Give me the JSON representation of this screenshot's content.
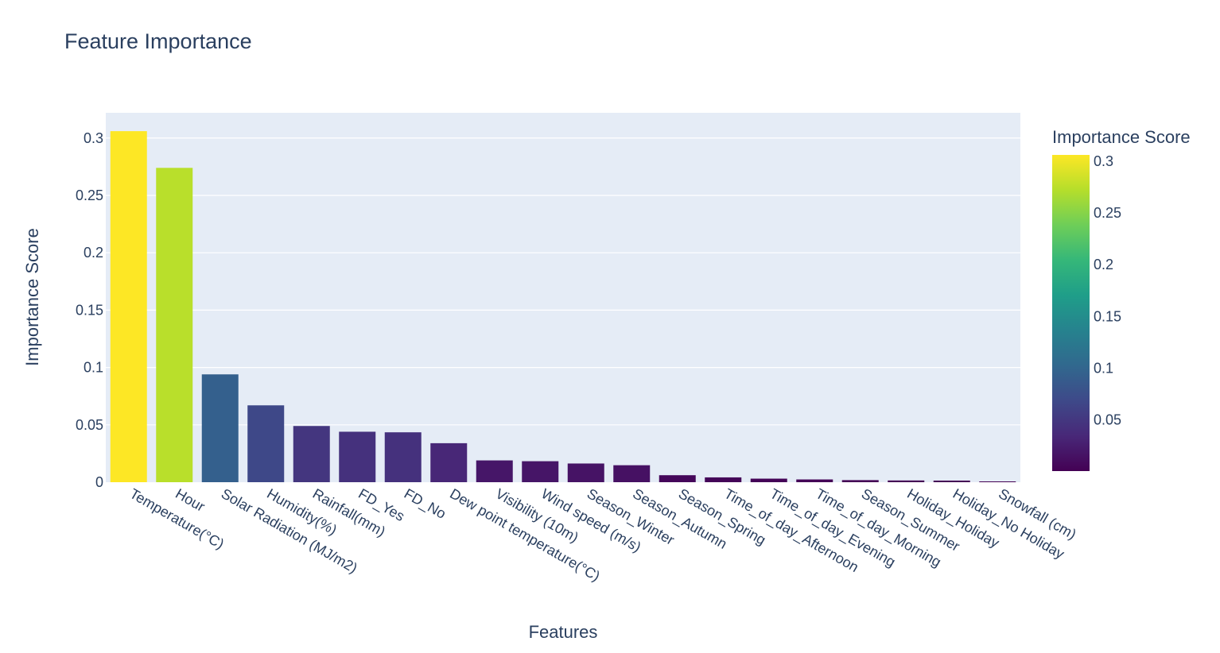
{
  "chart_data": {
    "type": "bar",
    "title": "Feature Importance",
    "xlabel": "Features",
    "ylabel": "Importance Score",
    "categories": [
      "Temperature(°C)",
      "Hour",
      "Solar Radiation (MJ/m2)",
      "Humidity(%)",
      "Rainfall(mm)",
      "FD_Yes",
      "FD_No",
      "Dew point temperature(°C)",
      "Visibility (10m)",
      "Wind speed (m/s)",
      "Season_Winter",
      "Season_Autumn",
      "Season_Spring",
      "Time_of_day_Afternoon",
      "Time_of_day_Evening",
      "Time_of_day_Morning",
      "Season_Summer",
      "Holiday_Holiday",
      "Holiday_No Holiday",
      "Snowfall (cm)"
    ],
    "values": [
      0.306,
      0.274,
      0.094,
      0.067,
      0.049,
      0.044,
      0.0435,
      0.034,
      0.019,
      0.0183,
      0.0163,
      0.0148,
      0.0061,
      0.0042,
      0.0031,
      0.0024,
      0.0018,
      0.0015,
      0.0014,
      0.0006
    ],
    "ylim": [
      0,
      0.322
    ],
    "yticks": [
      "0",
      "0.05",
      "0.1",
      "0.15",
      "0.2",
      "0.25",
      "0.3"
    ],
    "colorscale": "viridis",
    "colorbar": {
      "title": "Importance Score",
      "ticks": [
        "0.05",
        "0.1",
        "0.15",
        "0.2",
        "0.25",
        "0.3"
      ]
    },
    "colors": {
      "plot_bg": "#e5ecf6",
      "grid": "#ffffff",
      "text": "#2a3f5f"
    }
  }
}
